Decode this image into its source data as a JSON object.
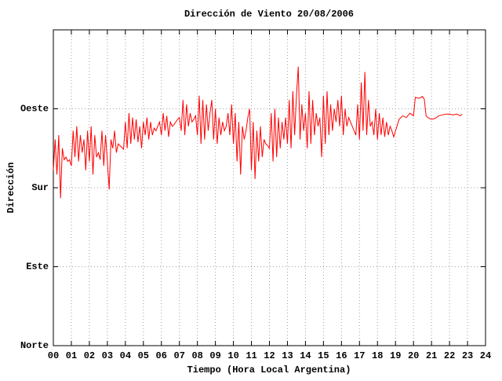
{
  "chart_data": {
    "type": "line",
    "title": "Dirección de Viento 20/08/2006",
    "x_label": "Tiempo (Hora Local Argentina)",
    "y_label": "Dirección",
    "xlim": [
      0,
      24
    ],
    "ylim": [
      0,
      360
    ],
    "grid": true,
    "xticks": [
      {
        "value": 0,
        "label": "00"
      },
      {
        "value": 1,
        "label": "01"
      },
      {
        "value": 2,
        "label": "02"
      },
      {
        "value": 3,
        "label": "03"
      },
      {
        "value": 4,
        "label": "04"
      },
      {
        "value": 5,
        "label": "05"
      },
      {
        "value": 6,
        "label": "06"
      },
      {
        "value": 7,
        "label": "07"
      },
      {
        "value": 8,
        "label": "08"
      },
      {
        "value": 9,
        "label": "09"
      },
      10,
      11,
      12,
      13,
      14,
      15,
      16,
      17,
      18,
      19,
      20,
      21,
      22,
      23,
      24
    ],
    "yticks": [
      {
        "value": 0,
        "label": "Norte"
      },
      {
        "value": 90,
        "label": "Este"
      },
      {
        "value": 180,
        "label": "Sur"
      },
      {
        "value": 270,
        "label": "Oeste"
      }
    ],
    "x": [
      0.0,
      0.1,
      0.2,
      0.3,
      0.4,
      0.5,
      0.6,
      0.7,
      0.8,
      0.9,
      1.0,
      1.1,
      1.2,
      1.3,
      1.4,
      1.5,
      1.6,
      1.7,
      1.8,
      1.9,
      2.0,
      2.1,
      2.2,
      2.3,
      2.4,
      2.5,
      2.6,
      2.7,
      2.8,
      2.9,
      3.0,
      3.1,
      3.2,
      3.3,
      3.4,
      3.5,
      3.6,
      3.7,
      3.8,
      3.9,
      4.0,
      4.1,
      4.2,
      4.3,
      4.4,
      4.5,
      4.6,
      4.7,
      4.8,
      4.9,
      5.0,
      5.1,
      5.2,
      5.3,
      5.4,
      5.5,
      5.6,
      5.7,
      5.8,
      5.9,
      6.0,
      6.1,
      6.2,
      6.3,
      6.4,
      6.5,
      6.6,
      6.7,
      6.8,
      6.9,
      7.0,
      7.1,
      7.2,
      7.3,
      7.4,
      7.5,
      7.6,
      7.7,
      7.8,
      7.9,
      8.0,
      8.1,
      8.2,
      8.3,
      8.4,
      8.5,
      8.6,
      8.7,
      8.8,
      8.9,
      9.0,
      9.1,
      9.2,
      9.3,
      9.4,
      9.5,
      9.6,
      9.7,
      9.8,
      9.9,
      10.0,
      10.1,
      10.2,
      10.3,
      10.4,
      10.5,
      10.6,
      10.7,
      10.8,
      10.9,
      11.0,
      11.1,
      11.2,
      11.3,
      11.4,
      11.5,
      11.6,
      11.7,
      11.8,
      11.9,
      12.0,
      12.1,
      12.2,
      12.3,
      12.4,
      12.5,
      12.6,
      12.7,
      12.8,
      12.9,
      13.0,
      13.1,
      13.2,
      13.3,
      13.4,
      13.5,
      13.6,
      13.7,
      13.8,
      13.9,
      14.0,
      14.1,
      14.2,
      14.3,
      14.4,
      14.5,
      14.6,
      14.7,
      14.8,
      14.9,
      15.0,
      15.1,
      15.2,
      15.3,
      15.4,
      15.5,
      15.6,
      15.7,
      15.8,
      15.9,
      16.0,
      16.1,
      16.2,
      16.3,
      16.4,
      16.5,
      16.6,
      16.7,
      16.8,
      16.9,
      17.0,
      17.1,
      17.2,
      17.3,
      17.4,
      17.5,
      17.6,
      17.7,
      17.8,
      17.9,
      18.0,
      18.1,
      18.2,
      18.3,
      18.4,
      18.5,
      18.6,
      18.7,
      18.8,
      18.9,
      19.2,
      19.4,
      19.6,
      19.8,
      20.0,
      20.1,
      20.3,
      20.5,
      20.6,
      20.7,
      20.8,
      21.0,
      21.2,
      21.4,
      21.6,
      21.8,
      22.0,
      22.2,
      22.4,
      22.6,
      22.7
    ],
    "series": [
      {
        "color": "#ff0000",
        "values": [
          200,
          235,
          195,
          240,
          168,
          225,
          212,
          215,
          210,
          212,
          205,
          245,
          215,
          250,
          210,
          240,
          220,
          235,
          200,
          245,
          210,
          250,
          195,
          240,
          215,
          220,
          212,
          245,
          205,
          240,
          210,
          178,
          235,
          225,
          245,
          220,
          230,
          228,
          226,
          224,
          255,
          225,
          265,
          230,
          260,
          235,
          258,
          232,
          250,
          225,
          255,
          240,
          260,
          235,
          255,
          240,
          248,
          245,
          250,
          255,
          240,
          265,
          245,
          262,
          238,
          255,
          250,
          252,
          255,
          258,
          260,
          245,
          280,
          240,
          275,
          250,
          265,
          255,
          258,
          262,
          240,
          285,
          230,
          280,
          235,
          275,
          245,
          265,
          280,
          235,
          270,
          230,
          260,
          240,
          255,
          245,
          250,
          265,
          240,
          275,
          230,
          265,
          210,
          255,
          195,
          250,
          235,
          245,
          260,
          270,
          200,
          255,
          190,
          245,
          210,
          250,
          215,
          235,
          230,
          228,
          225,
          265,
          210,
          270,
          215,
          260,
          225,
          255,
          235,
          260,
          230,
          280,
          225,
          290,
          240,
          285,
          318,
          235,
          275,
          245,
          265,
          225,
          290,
          230,
          280,
          240,
          265,
          250,
          260,
          215,
          285,
          230,
          290,
          240,
          275,
          245,
          270,
          255,
          280,
          250,
          285,
          240,
          270,
          250,
          260,
          255,
          250,
          245,
          240,
          275,
          235,
          300,
          245,
          312,
          240,
          280,
          250,
          255,
          240,
          270,
          235,
          265,
          240,
          260,
          238,
          255,
          240,
          250,
          245,
          238,
          258,
          262,
          260,
          265,
          262,
          283,
          282,
          284,
          281,
          262,
          260,
          258,
          259,
          262,
          263,
          264,
          264,
          263,
          264,
          262,
          264
        ]
      }
    ]
  }
}
